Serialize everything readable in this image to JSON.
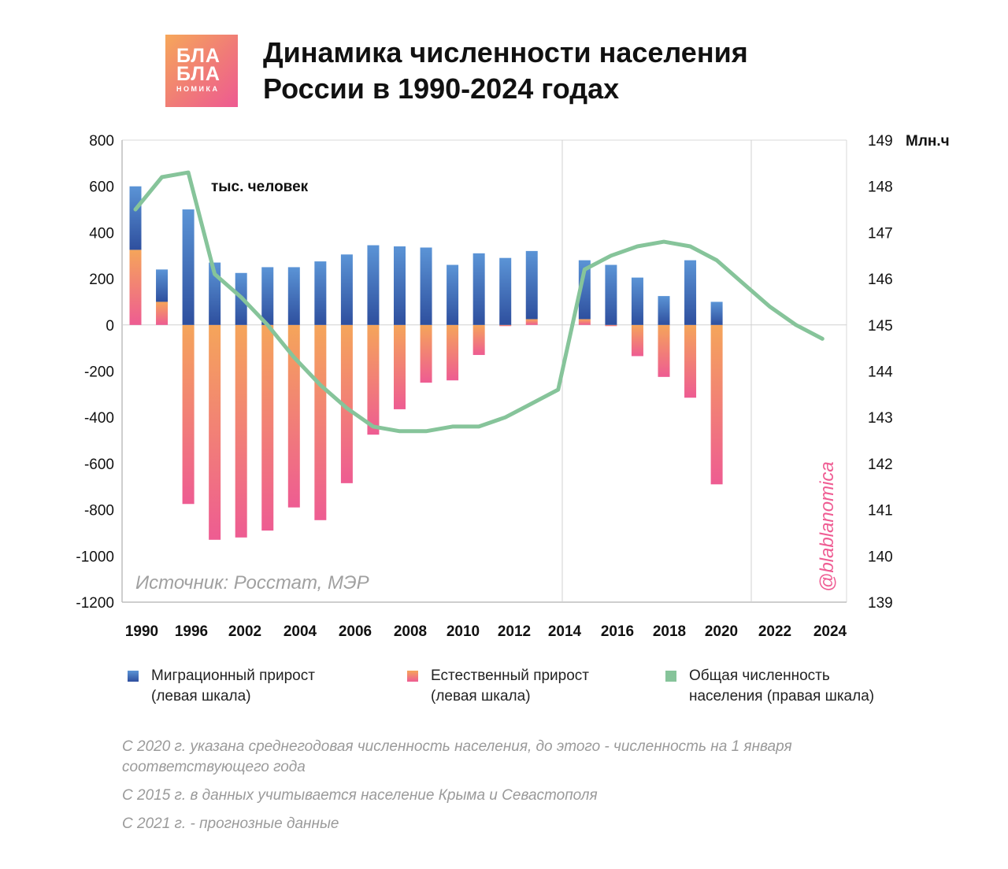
{
  "logo": {
    "line1": "БЛА",
    "line2": "БЛА",
    "line3": "НОМИКА"
  },
  "title": {
    "line1": "Динамика численности населения",
    "line2": "России в 1990-2024 годах"
  },
  "chart_data": {
    "type": "bar+line",
    "x_tick_labels": [
      "1990",
      "1996",
      "2002",
      "2004",
      "2006",
      "2008",
      "2010",
      "2012",
      "2014",
      "2016",
      "2018",
      "2020",
      "2022",
      "2024"
    ],
    "left_axis": {
      "label": "тыс. человек",
      "ylim": [
        -1200,
        800
      ],
      "ticks": [
        800,
        600,
        400,
        200,
        0,
        -200,
        -400,
        -600,
        -800,
        -1000,
        -1200
      ]
    },
    "right_axis": {
      "unit_label": "Млн.ч",
      "ylim": [
        139,
        149
      ],
      "ticks": [
        149,
        148,
        147,
        146,
        145,
        144,
        143,
        142,
        141,
        140,
        139
      ]
    },
    "bar_slots": [
      "1990",
      "1993",
      "1996",
      "1999",
      "2002",
      "2003",
      "2004",
      "2005",
      "2006",
      "2007",
      "2008",
      "2009",
      "2010",
      "2011",
      "2012",
      "2013",
      "2014",
      "2015",
      "2016",
      "2017",
      "2018",
      "2019",
      "2020",
      "2021",
      "2022",
      "2023",
      "2024"
    ],
    "series": [
      {
        "name": "Миграционный прирост (левая шкала)",
        "values": [
          275,
          140,
          500,
          270,
          225,
          250,
          250,
          275,
          305,
          345,
          340,
          335,
          260,
          310,
          290,
          295,
          null,
          255,
          260,
          205,
          125,
          280,
          100,
          null,
          null,
          null,
          null
        ]
      },
      {
        "name": "Естественный прирост (левая шкала)",
        "values": [
          325,
          100,
          -775,
          -930,
          -920,
          -890,
          -790,
          -845,
          -685,
          -475,
          -365,
          -250,
          -240,
          -130,
          -5,
          25,
          null,
          25,
          -5,
          -135,
          -225,
          -315,
          -690,
          null,
          null,
          null,
          null
        ]
      },
      {
        "name": "Общая численность населения (правая шкала)",
        "x": [
          1990,
          1993,
          1996,
          1999,
          2002,
          2003,
          2004,
          2005,
          2006,
          2007,
          2008,
          2009,
          2010,
          2011,
          2012,
          2013,
          2014,
          2015,
          2016,
          2017,
          2018,
          2019,
          2020,
          2021,
          2022,
          2023,
          2024
        ],
        "values": [
          147.5,
          148.2,
          148.3,
          146.1,
          145.6,
          145.0,
          144.3,
          143.7,
          143.2,
          142.8,
          142.7,
          142.7,
          142.8,
          142.8,
          143.0,
          143.3,
          143.6,
          146.2,
          146.5,
          146.7,
          146.8,
          146.7,
          146.4,
          145.9,
          145.4,
          145.0,
          144.7
        ]
      }
    ],
    "annotations": {
      "source": "Источник: Росстат, МЭР",
      "watermark": "@blablanomica"
    },
    "vertical_separators_after": [
      "2014",
      "2021"
    ],
    "grid": false
  },
  "legend": [
    {
      "line1": "Миграционный прирост",
      "line2": "(левая шкала)",
      "color": "#3a62b0"
    },
    {
      "line1": "Естественный прирост",
      "line2": "(левая шкала)",
      "color": "#f4786e"
    },
    {
      "line1": "Общая численность",
      "line2": "населения (правая шкала)",
      "color": "#86c49a"
    }
  ],
  "notes": [
    "С 2020 г. указана среднегодовая численность населения, до этого - численность на 1 января соответствующего года",
    "С 2015 г. в данных учитывается население Крыма и Севастополя",
    "С 2021 г. - прогнозные данные"
  ],
  "colors": {
    "migration_top": "#5b94d6",
    "migration_bottom": "#2e4f9e",
    "natural_top": "#f5a55a",
    "natural_bottom": "#ee5c92",
    "line": "#86c49a"
  }
}
